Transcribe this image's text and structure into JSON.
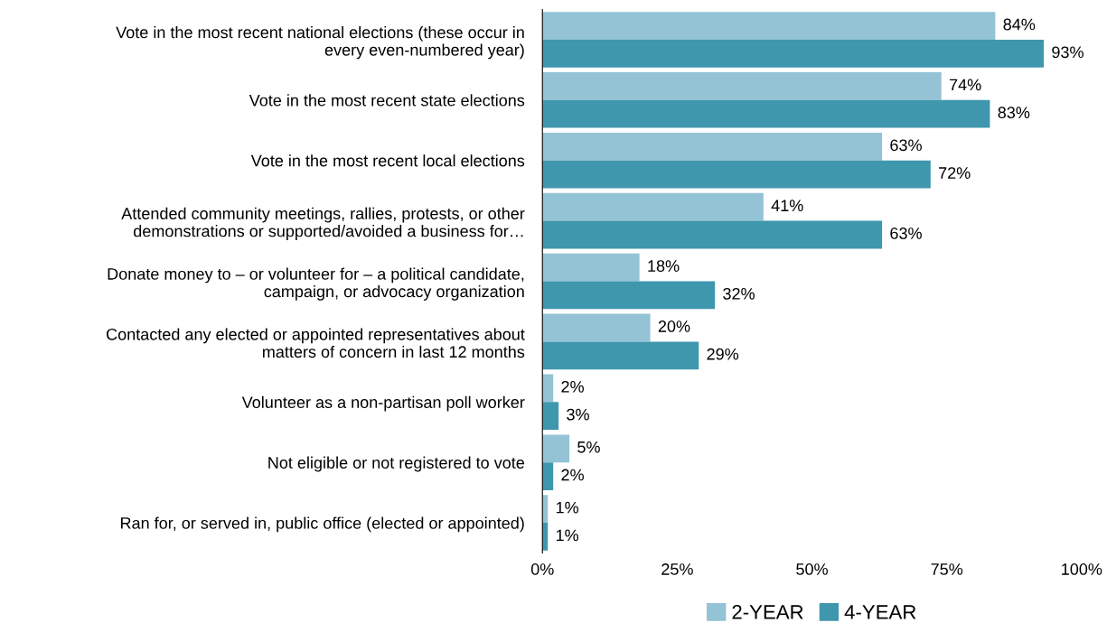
{
  "chart_data": {
    "type": "bar",
    "orientation": "horizontal",
    "categories": [
      "Vote in the most recent national elections (these occur in\nevery even-numbered year)",
      "Vote in the most recent state elections",
      "Vote in the most recent local elections",
      "Attended community meetings, rallies, protests, or other\ndemonstrations or supported/avoided a business for…",
      "Donate money to – or volunteer for – a political candidate,\ncampaign, or advocacy organization",
      "Contacted any elected or appointed representatives about\nmatters of concern in last 12 months",
      "Volunteer as a non-partisan poll worker",
      "Not eligible or not registered to vote",
      "Ran for, or served in, public office (elected or appointed)"
    ],
    "series": [
      {
        "name": "2-YEAR",
        "color": "#93c3d5",
        "values": [
          84,
          74,
          63,
          41,
          18,
          20,
          2,
          5,
          1
        ],
        "value_labels": [
          "84%",
          "74%",
          "63%",
          "41%",
          "18%",
          "20%",
          "2%",
          "5%",
          "1%"
        ]
      },
      {
        "name": "4-YEAR",
        "color": "#3f97ad",
        "values": [
          93,
          83,
          72,
          63,
          32,
          29,
          3,
          2,
          1
        ],
        "value_labels": [
          "93%",
          "83%",
          "72%",
          "63%",
          "32%",
          "29%",
          "3%",
          "2%",
          "1%"
        ]
      }
    ],
    "xlim": [
      0,
      100
    ],
    "xticks": [
      {
        "value": 0,
        "label": "0%"
      },
      {
        "value": 25,
        "label": "25%"
      },
      {
        "value": 50,
        "label": "50%"
      },
      {
        "value": 75,
        "label": "75%"
      },
      {
        "value": 100,
        "label": "100%"
      }
    ],
    "grid": false,
    "legend": "bottom"
  }
}
